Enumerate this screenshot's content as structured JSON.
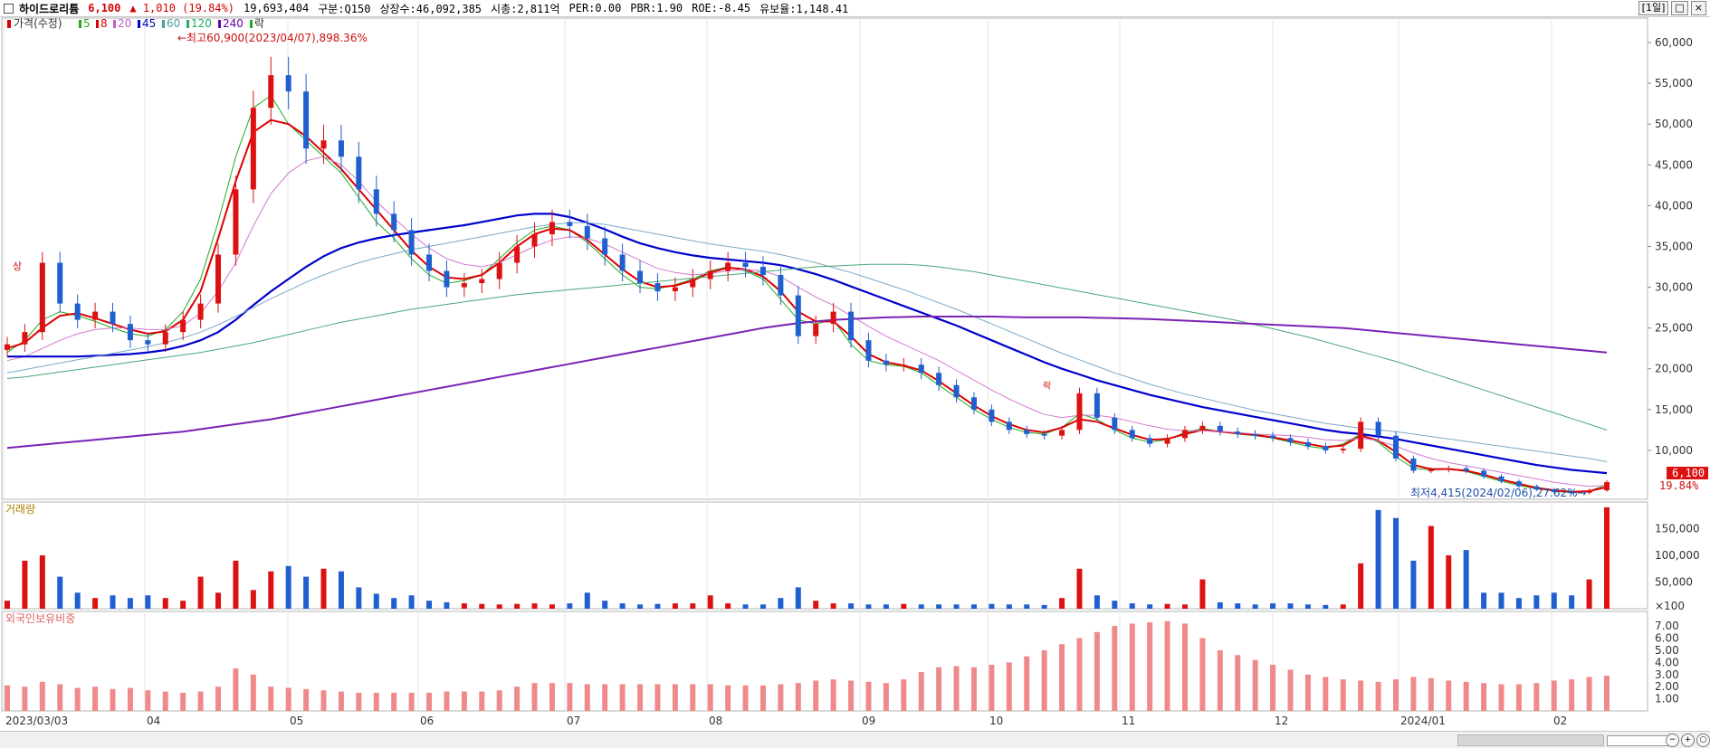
{
  "header": {
    "name": "하이드로리튬",
    "price": "6,100",
    "change": "▲  1,010 (19.84%)",
    "volume": "19,693,404",
    "code": "구분:Q150",
    "shares": "상장수:46,092,385",
    "mcap": "시총:2,811억",
    "per": "PER:0.00",
    "pbr": "PBR:1.90",
    "roe": "ROE:-8.45",
    "reserve": "유보율:1,148.41",
    "period_button": "[1일]",
    "window_buttons": [
      "□",
      "×"
    ]
  },
  "legend": {
    "price_label": "가격(수정)",
    "ma": [
      {
        "label": "5",
        "color": "#22aa22"
      },
      {
        "label": "8",
        "color": "#dd0000"
      },
      {
        "label": "20",
        "color": "#c060c0"
      },
      {
        "label": "45",
        "color": "#0000cc"
      },
      {
        "label": "60",
        "color": "#4aa0a0"
      },
      {
        "label": "120",
        "color": "#22aa66"
      },
      {
        "label": "240",
        "color": "#6600aa"
      }
    ],
    "extra": "락",
    "volume_label": "거래량",
    "foreign_label": "외국인보유비중"
  },
  "annotations": {
    "high": "최고60,900(2023/04/07),898.36%",
    "low": "최저4,415(2024/02/06),27.62%",
    "limit_up": "상",
    "ex_marker": "락",
    "current_price": "6,100",
    "current_pct": "19.84%"
  },
  "chart_data": [
    {
      "type": "candlestick",
      "title": "가격(수정)",
      "x": [
        "2023/03/03",
        "2023/04",
        "2023/05",
        "2023/06",
        "2023/07",
        "2023/08",
        "2023/09",
        "2023/10",
        "2023/11",
        "2023/12",
        "2024/01",
        "2024/02"
      ],
      "x_tick_labels": [
        "2023/03/03",
        "04",
        "05",
        "06",
        "07",
        "08",
        "09",
        "10",
        "11",
        "12",
        "2024/01",
        "02"
      ],
      "ylim": [
        4000,
        63000
      ],
      "y_ticks": [
        10000,
        15000,
        20000,
        25000,
        30000,
        35000,
        40000,
        45000,
        50000,
        55000,
        60000
      ],
      "y_tick_labels": [
        "10,000",
        "15,000",
        "20,000",
        "25,000",
        "30,000",
        "35,000",
        "40,000",
        "45,000",
        "50,000",
        "55,000",
        "60,000"
      ],
      "close_series": [
        23000,
        24500,
        33000,
        28000,
        26000,
        27000,
        25500,
        23500,
        23000,
        24500,
        26000,
        28000,
        34000,
        42000,
        52000,
        56000,
        54000,
        47000,
        48000,
        46000,
        42000,
        39000,
        37000,
        34000,
        32000,
        30000,
        30500,
        31000,
        33000,
        35000,
        36500,
        38000,
        37500,
        36000,
        34000,
        32000,
        30500,
        29500,
        30000,
        31000,
        32000,
        33000,
        32500,
        31500,
        29000,
        24000,
        25500,
        27000,
        23500,
        21000,
        20500,
        20500,
        19500,
        18000,
        16500,
        15000,
        13500,
        12500,
        12000,
        11800,
        12500,
        17000,
        14000,
        12500,
        11500,
        10800,
        11500,
        12500,
        13000,
        12300,
        12000,
        11800,
        11500,
        11000,
        10500,
        10000,
        10200,
        13500,
        11800,
        9000,
        7500,
        7600,
        7800,
        7500,
        6800,
        6200,
        5600,
        5200,
        4900,
        4800,
        5100,
        6100
      ],
      "ma": [
        {
          "name": "5",
          "values": [
            22000,
            23500,
            26000,
            27000,
            26500,
            25800,
            25000,
            24300,
            24000,
            24800,
            27000,
            31000,
            38000,
            46000,
            52000,
            53500,
            50000,
            48000,
            46000,
            44000,
            41000,
            38000,
            36000,
            33500,
            31500,
            30500,
            30800,
            31500,
            33500,
            35500,
            37000,
            37500,
            37000,
            35500,
            33500,
            31500,
            30000,
            29800,
            30300,
            31000,
            32000,
            32500,
            32000,
            31000,
            28500,
            26000,
            25500,
            26000,
            23000,
            21000,
            20500,
            20300,
            19500,
            18000,
            16500,
            15000,
            13800,
            12800,
            12200,
            12000,
            12800,
            14500,
            13800,
            12500,
            11500,
            11000,
            11300,
            12200,
            12700,
            12300,
            12000,
            11800,
            11500,
            11000,
            10500,
            10200,
            10800,
            12000,
            11000,
            9200,
            7800,
            7600,
            7700,
            7400,
            6800,
            6200,
            5700,
            5300,
            5000,
            4800,
            5000,
            5800
          ]
        },
        {
          "name": "8",
          "values": [
            22500,
            23200,
            25000,
            26500,
            26800,
            26200,
            25500,
            24800,
            24300,
            24600,
            26000,
            29500,
            36000,
            43000,
            49000,
            50500,
            50000,
            48500,
            46500,
            44500,
            42000,
            39500,
            37000,
            34500,
            32500,
            31200,
            31000,
            31500,
            33000,
            35000,
            36500,
            37200,
            37000,
            35800,
            34000,
            32200,
            30700,
            30000,
            30200,
            30800,
            31800,
            32400,
            32200,
            31300,
            29500,
            27000,
            25800,
            25800,
            24000,
            21800,
            20800,
            20400,
            19800,
            18500,
            17000,
            15500,
            14200,
            13200,
            12500,
            12200,
            12800,
            13800,
            13500,
            12700,
            11900,
            11300,
            11400,
            12000,
            12500,
            12300,
            12100,
            11900,
            11600,
            11200,
            10800,
            10400,
            10600,
            11800,
            11200,
            9800,
            8200,
            7700,
            7700,
            7500,
            7000,
            6400,
            5900,
            5400,
            5100,
            4900,
            5000,
            5500
          ]
        },
        {
          "name": "20",
          "values": [
            21000,
            21500,
            22500,
            23500,
            24300,
            24800,
            25000,
            25000,
            24800,
            24800,
            25300,
            26800,
            29500,
            33000,
            37500,
            41500,
            44000,
            45500,
            46000,
            45000,
            43000,
            40500,
            38500,
            36500,
            34800,
            33500,
            32800,
            32500,
            33000,
            34000,
            35000,
            35800,
            36200,
            36000,
            35300,
            34300,
            33300,
            32300,
            31800,
            31500,
            31700,
            32000,
            32200,
            32000,
            31300,
            30000,
            28800,
            27800,
            26500,
            25200,
            24000,
            23000,
            22000,
            21000,
            19800,
            18600,
            17400,
            16300,
            15300,
            14400,
            14000,
            14300,
            14300,
            14000,
            13500,
            13000,
            12600,
            12400,
            12400,
            12300,
            12200,
            12000,
            11900,
            11800,
            11600,
            11300,
            11200,
            11500,
            11200,
            10500,
            9700,
            9000,
            8500,
            8100,
            7700,
            7300,
            6900,
            6500,
            6100,
            5800,
            5600,
            5700
          ]
        },
        {
          "name": "45",
          "values": [
            21500,
            21500,
            21500,
            21500,
            21500,
            21600,
            21700,
            21800,
            22000,
            22300,
            22800,
            23500,
            24500,
            26000,
            27800,
            29500,
            31000,
            32500,
            33800,
            34800,
            35500,
            36000,
            36400,
            36700,
            37000,
            37300,
            37600,
            38000,
            38400,
            38800,
            39000,
            39000,
            38600,
            37900,
            37100,
            36200,
            35400,
            34800,
            34300,
            33900,
            33600,
            33400,
            33200,
            33000,
            32700,
            32200,
            31600,
            30900,
            30100,
            29300,
            28500,
            27700,
            26900,
            26100,
            25300,
            24400,
            23500,
            22600,
            21700,
            20800,
            20000,
            19300,
            18600,
            18000,
            17400,
            16800,
            16300,
            15800,
            15300,
            14900,
            14500,
            14100,
            13700,
            13300,
            12900,
            12500,
            12200,
            12000,
            11700,
            11400,
            11000,
            10600,
            10200,
            9800,
            9400,
            9000,
            8600,
            8200,
            7900,
            7600,
            7400,
            7200
          ]
        },
        {
          "name": "60",
          "values": [
            19500,
            19900,
            20300,
            20700,
            21100,
            21500,
            21900,
            22300,
            22700,
            23200,
            23800,
            24500,
            25400,
            26400,
            27500,
            28600,
            29600,
            30600,
            31500,
            32300,
            33000,
            33600,
            34100,
            34600,
            35000,
            35400,
            35800,
            36200,
            36600,
            37000,
            37400,
            37700,
            37900,
            37900,
            37700,
            37300,
            36900,
            36500,
            36100,
            35700,
            35300,
            35000,
            34700,
            34400,
            34000,
            33500,
            33000,
            32400,
            31800,
            31100,
            30400,
            29700,
            28900,
            28100,
            27300,
            26400,
            25500,
            24600,
            23700,
            22800,
            21900,
            21100,
            20300,
            19500,
            18800,
            18100,
            17500,
            16900,
            16400,
            15900,
            15400,
            14900,
            14500,
            14100,
            13700,
            13300,
            13000,
            12700,
            12500,
            12300,
            12000,
            11700,
            11400,
            11100,
            10800,
            10500,
            10200,
            9900,
            9600,
            9300,
            9000,
            8600
          ]
        },
        {
          "name": "120",
          "values": [
            18800,
            19000,
            19300,
            19600,
            19900,
            20200,
            20500,
            20800,
            21100,
            21400,
            21700,
            22000,
            22400,
            22800,
            23200,
            23700,
            24200,
            24700,
            25200,
            25700,
            26100,
            26500,
            26900,
            27300,
            27600,
            27900,
            28200,
            28500,
            28800,
            29100,
            29300,
            29500,
            29700,
            29900,
            30100,
            30300,
            30500,
            30700,
            30900,
            31100,
            31300,
            31500,
            31700,
            31900,
            32100,
            32300,
            32500,
            32600,
            32700,
            32800,
            32800,
            32800,
            32700,
            32500,
            32200,
            31900,
            31500,
            31100,
            30700,
            30300,
            29900,
            29500,
            29100,
            28700,
            28300,
            27900,
            27500,
            27100,
            26700,
            26300,
            25900,
            25400,
            24900,
            24400,
            23900,
            23300,
            22700,
            22100,
            21500,
            20900,
            20200,
            19500,
            18800,
            18100,
            17400,
            16700,
            16000,
            15300,
            14600,
            13900,
            13200,
            12500
          ]
        },
        {
          "name": "240",
          "values": [
            10300,
            10500,
            10700,
            10900,
            11100,
            11300,
            11500,
            11700,
            11900,
            12100,
            12300,
            12600,
            12900,
            13200,
            13500,
            13800,
            14200,
            14600,
            15000,
            15400,
            15800,
            16200,
            16600,
            17000,
            17400,
            17800,
            18200,
            18600,
            19000,
            19400,
            19800,
            20200,
            20600,
            21000,
            21400,
            21800,
            22200,
            22600,
            23000,
            23400,
            23800,
            24200,
            24600,
            25000,
            25300,
            25600,
            25800,
            26000,
            26100,
            26200,
            26300,
            26350,
            26400,
            26400,
            26400,
            26400,
            26400,
            26350,
            26300,
            26300,
            26300,
            26300,
            26250,
            26200,
            26150,
            26100,
            26000,
            25900,
            25800,
            25700,
            25600,
            25500,
            25400,
            25300,
            25200,
            25100,
            25000,
            24800,
            24600,
            24400,
            24200,
            24000,
            23800,
            23600,
            23400,
            23200,
            23000,
            22800,
            22600,
            22400,
            22200,
            22000
          ]
        }
      ]
    },
    {
      "type": "bar",
      "title": "거래량",
      "ylim": [
        0,
        200000
      ],
      "y_tick_labels": [
        "150,000",
        "100,000",
        "50,000",
        "×100"
      ],
      "values": [
        15000,
        90000,
        100000,
        60000,
        30000,
        20000,
        25000,
        20000,
        25000,
        20000,
        15000,
        60000,
        30000,
        90000,
        35000,
        70000,
        80000,
        60000,
        75000,
        70000,
        40000,
        28000,
        20000,
        25000,
        15000,
        12000,
        10000,
        9000,
        8000,
        9000,
        10000,
        8000,
        10000,
        30000,
        15000,
        10000,
        8000,
        9000,
        10000,
        10000,
        25000,
        10000,
        8000,
        8000,
        20000,
        40000,
        15000,
        10000,
        10000,
        8000,
        8000,
        9000,
        8000,
        8000,
        8000,
        8000,
        9000,
        8000,
        8000,
        7000,
        20000,
        75000,
        25000,
        15000,
        10000,
        8000,
        9000,
        8000,
        55000,
        12000,
        10000,
        8000,
        10000,
        10000,
        8000,
        7000,
        8000,
        85000,
        185000,
        170000,
        90000,
        155000,
        100000,
        110000,
        30000,
        30000,
        20000,
        25000,
        30000,
        25000,
        55000,
        190000
      ]
    },
    {
      "type": "bar",
      "title": "외국인보유비중",
      "ylim": [
        0,
        8.2
      ],
      "y_tick_labels": [
        "7.00",
        "6.00",
        "5.00",
        "4.00",
        "3.00",
        "2.00",
        "1.00"
      ],
      "values": [
        2.1,
        2.0,
        2.4,
        2.2,
        1.9,
        2.0,
        1.8,
        1.9,
        1.7,
        1.6,
        1.5,
        1.6,
        2.0,
        3.5,
        3.0,
        2.0,
        1.9,
        1.8,
        1.7,
        1.6,
        1.5,
        1.5,
        1.5,
        1.5,
        1.5,
        1.6,
        1.6,
        1.6,
        1.7,
        2.0,
        2.3,
        2.3,
        2.3,
        2.2,
        2.2,
        2.2,
        2.2,
        2.2,
        2.2,
        2.2,
        2.2,
        2.1,
        2.1,
        2.1,
        2.2,
        2.3,
        2.5,
        2.6,
        2.5,
        2.4,
        2.3,
        2.6,
        3.2,
        3.6,
        3.7,
        3.6,
        3.8,
        4.0,
        4.5,
        5.0,
        5.5,
        6.0,
        6.5,
        7.0,
        7.2,
        7.3,
        7.4,
        7.2,
        6.0,
        5.0,
        4.6,
        4.2,
        3.8,
        3.4,
        3.0,
        2.8,
        2.6,
        2.5,
        2.4,
        2.6,
        2.8,
        2.7,
        2.5,
        2.4,
        2.3,
        2.2,
        2.2,
        2.3,
        2.5,
        2.6,
        2.8,
        2.9
      ]
    }
  ]
}
